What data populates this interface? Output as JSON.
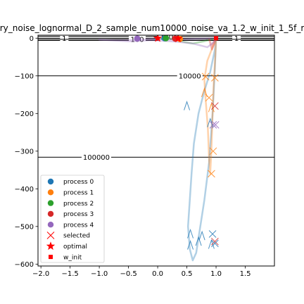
{
  "chart_data": {
    "type": "line",
    "title": "ry_noise_lognormal_D_2_sample_num10000_noise_va_1.2_w_init_1_5f_r",
    "xlabel": "",
    "ylabel": "",
    "xlim": [
      -2.05,
      2.0
    ],
    "ylim": [
      -605,
      8
    ],
    "xticks": [
      -2.0,
      -1.5,
      -1.0,
      -0.5,
      0.0,
      0.5,
      1.0,
      1.5
    ],
    "xtick_labels": [
      "−2.0",
      "−1.5",
      "−1.0",
      "−0.5",
      "0.0",
      "0.5",
      "1.0",
      "1.5"
    ],
    "yticks": [
      0,
      -100,
      -200,
      -300,
      -400,
      -500,
      -600
    ],
    "ytick_labels": [
      "0",
      "−100",
      "−200",
      "−300",
      "−400",
      "−500",
      "−600"
    ],
    "grid": false,
    "legend_position": "lower-left",
    "colors": {
      "process 0": "#1f77b4",
      "process 1": "#ff7f0e",
      "process 2": "#2ca02c",
      "process 3": "#d62728",
      "process 4": "#9467bd",
      "selected": "#ff0000",
      "optimal": "#ff0000",
      "w_init": "#ff0000"
    },
    "legend": [
      {
        "label": "process 0",
        "marker": "circle",
        "color": "#1f77b4"
      },
      {
        "label": "process 1",
        "marker": "circle",
        "color": "#ff7f0e"
      },
      {
        "label": "process 2",
        "marker": "circle",
        "color": "#2ca02c"
      },
      {
        "label": "process 3",
        "marker": "circle",
        "color": "#d62728"
      },
      {
        "label": "process 4",
        "marker": "circle",
        "color": "#9467bd"
      },
      {
        "label": "selected",
        "marker": "x",
        "color": "#ff0000"
      },
      {
        "label": "optimal",
        "marker": "star",
        "color": "#ff0000"
      },
      {
        "label": "w_init",
        "marker": "square",
        "color": "#ff0000"
      }
    ],
    "contours": [
      {
        "level": "1",
        "y": 0,
        "labels": [
          {
            "text": "1",
            "x": -1.6
          },
          {
            "text": "1",
            "x": 1.35
          }
        ]
      },
      {
        "level": "100",
        "y": -3,
        "labels": [
          {
            "text": "100",
            "x": -0.35,
            "y": -3
          },
          {
            "text": "100",
            "x": 0.15,
            "y": 3
          }
        ]
      },
      {
        "level": "10000",
        "y": -100,
        "labels": [
          {
            "text": "10000",
            "x": 0.55
          }
        ]
      },
      {
        "level": "100000",
        "y": -316,
        "labels": [
          {
            "text": "100000",
            "x": -1.05
          }
        ]
      }
    ],
    "series": [
      {
        "name": "process 0",
        "color": "#1f77b4",
        "points": [
          [
            1.0,
            0
          ],
          [
            0.98,
            -30
          ],
          [
            0.9,
            -90
          ],
          [
            0.8,
            -140
          ],
          [
            0.7,
            -200
          ],
          [
            0.62,
            -280
          ],
          [
            0.58,
            -360
          ],
          [
            0.55,
            -430
          ],
          [
            0.52,
            -500
          ],
          [
            0.55,
            -560
          ],
          [
            0.6,
            -590
          ],
          [
            0.66,
            -570
          ],
          [
            0.72,
            -510
          ],
          [
            0.8,
            -430
          ],
          [
            0.88,
            -330
          ],
          [
            0.94,
            -200
          ],
          [
            0.98,
            -80
          ],
          [
            1.0,
            0
          ]
        ]
      },
      {
        "name": "process 1",
        "color": "#ff7f0e",
        "points": [
          [
            1.0,
            0
          ],
          [
            0.95,
            -20
          ],
          [
            0.85,
            -60
          ],
          [
            0.8,
            -110
          ],
          [
            0.82,
            -160
          ],
          [
            0.86,
            -240
          ],
          [
            0.88,
            -320
          ],
          [
            0.9,
            -360
          ],
          [
            0.92,
            -300
          ],
          [
            0.94,
            -200
          ],
          [
            0.96,
            -120
          ],
          [
            0.99,
            -40
          ],
          [
            1.0,
            0
          ]
        ]
      },
      {
        "name": "process 2",
        "color": "#2ca02c",
        "points": [
          [
            1.0,
            0
          ],
          [
            0.8,
            -8
          ],
          [
            0.6,
            -14
          ],
          [
            0.45,
            -10
          ],
          [
            0.3,
            -4
          ],
          [
            0.15,
            -1
          ],
          [
            0.0,
            0
          ]
        ]
      },
      {
        "name": "process 3",
        "color": "#d62728",
        "points": [
          [
            1.0,
            0
          ],
          [
            0.96,
            -10
          ],
          [
            0.92,
            -22
          ],
          [
            0.9,
            -10
          ],
          [
            0.88,
            -2
          ],
          [
            0.93,
            -30
          ],
          [
            0.97,
            -15
          ],
          [
            1.0,
            0
          ]
        ]
      },
      {
        "name": "process 4",
        "color": "#9467bd",
        "points": [
          [
            1.0,
            0
          ],
          [
            0.6,
            -2
          ],
          [
            0.2,
            -4
          ],
          [
            -0.1,
            -2
          ],
          [
            -0.4,
            -5
          ],
          [
            -0.7,
            -6
          ],
          [
            -1.0,
            -4
          ],
          [
            -0.5,
            -8
          ],
          [
            -0.1,
            -5
          ],
          [
            0.3,
            -9
          ],
          [
            0.6,
            -14
          ],
          [
            0.85,
            -24
          ],
          [
            0.95,
            -12
          ],
          [
            1.0,
            0
          ]
        ]
      }
    ],
    "selected_markers": [
      {
        "color": "#ff7f0e",
        "x": 0.82,
        "y": -102
      },
      {
        "color": "#ff7f0e",
        "x": 0.88,
        "y": -158
      },
      {
        "color": "#ff7f0e",
        "x": 0.92,
        "y": -360
      },
      {
        "color": "#ff7f0e",
        "x": 0.95,
        "y": -300
      },
      {
        "color": "#ff7f0e",
        "x": 0.98,
        "y": -105
      },
      {
        "color": "#d62728",
        "x": 0.98,
        "y": -180
      },
      {
        "color": "#d62728",
        "x": 0.98,
        "y": -540
      },
      {
        "color": "#9467bd",
        "x": 0.95,
        "y": -230
      },
      {
        "color": "#9467bd",
        "x": 0.99,
        "y": -230
      },
      {
        "color": "#1f77b4",
        "x": 0.94,
        "y": -520
      },
      {
        "color": "#1f77b4",
        "x": 0.98,
        "y": -545
      }
    ],
    "lambda_markers": [
      {
        "color": "#1f77b4",
        "x": 0.5,
        "y": -180
      },
      {
        "color": "#1f77b4",
        "x": 0.56,
        "y": -520
      },
      {
        "color": "#1f77b4",
        "x": 0.56,
        "y": -550
      },
      {
        "color": "#1f77b4",
        "x": 0.7,
        "y": -540
      },
      {
        "color": "#1f77b4",
        "x": 0.76,
        "y": -525
      },
      {
        "color": "#1f77b4",
        "x": 0.92,
        "y": -548
      },
      {
        "color": "#1f77b4",
        "x": 0.9,
        "y": -225
      },
      {
        "color": "#ff7f0e",
        "x": 0.8,
        "y": -145
      },
      {
        "color": "#ff7f0e",
        "x": 0.92,
        "y": -185
      }
    ],
    "end_points": [
      {
        "process": "process 0",
        "color": "#1f77b4",
        "x": 0.12,
        "y": 0
      },
      {
        "process": "process 1",
        "color": "#ff7f0e",
        "x": 0.38,
        "y": -2
      },
      {
        "process": "process 2",
        "color": "#2ca02c",
        "x": 0.14,
        "y": 0
      },
      {
        "process": "process 3",
        "color": "#d62728",
        "x": 0.3,
        "y": -1
      },
      {
        "process": "process 4",
        "color": "#9467bd",
        "x": -0.35,
        "y": -1
      }
    ],
    "optimal": [
      {
        "x": 0.0,
        "y": 0
      },
      {
        "x": 0.35,
        "y": -1
      }
    ],
    "w_init": {
      "x": 1.0,
      "y": 0
    }
  }
}
